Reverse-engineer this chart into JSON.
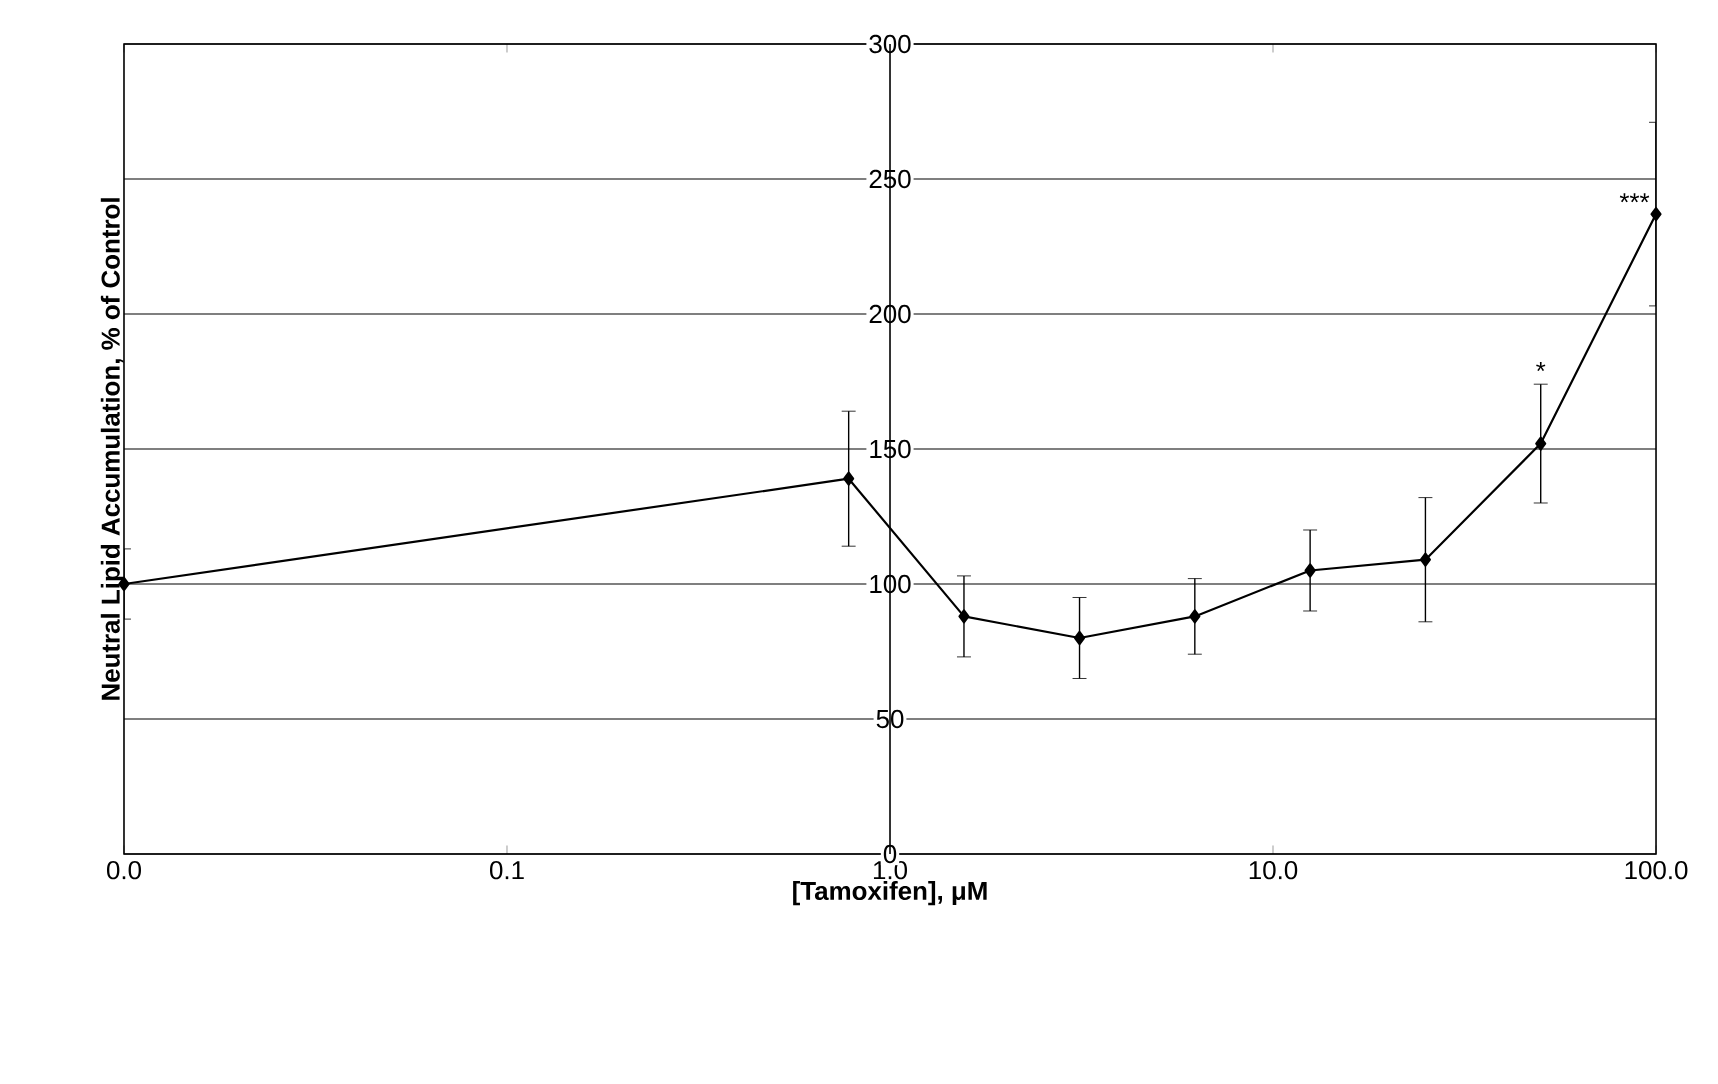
{
  "chart_data": {
    "type": "line",
    "xlabel": "[Tamoxifen], μM",
    "ylabel": "Neutral Lipid Accumulation, % of Control",
    "log": "x",
    "grid": "y",
    "marker": "diamond",
    "xlim": [
      0.01,
      100
    ],
    "ylim": [
      0,
      300
    ],
    "xticks": [
      {
        "value": 0.01,
        "label": "0.0"
      },
      {
        "value": 0.1,
        "label": "0.1"
      },
      {
        "value": 1,
        "label": "1.0"
      },
      {
        "value": 10,
        "label": "10.0"
      },
      {
        "value": 100,
        "label": "100.0"
      }
    ],
    "yticks": [
      0,
      50,
      100,
      150,
      200,
      250,
      300
    ],
    "series": [
      {
        "color": "#000000",
        "x": [
          0.01,
          0.78,
          1.56,
          3.125,
          6.25,
          12.5,
          25,
          50,
          100
        ],
        "values": [
          100,
          139,
          88,
          80,
          88,
          105,
          109,
          152,
          237
        ],
        "errors": [
          13,
          25,
          15,
          15,
          14,
          15,
          23,
          22,
          34
        ]
      }
    ],
    "annotations": [
      {
        "text": "*",
        "x": 50,
        "y": 174
      },
      {
        "text": "***",
        "x": 100,
        "y": 237
      }
    ]
  }
}
